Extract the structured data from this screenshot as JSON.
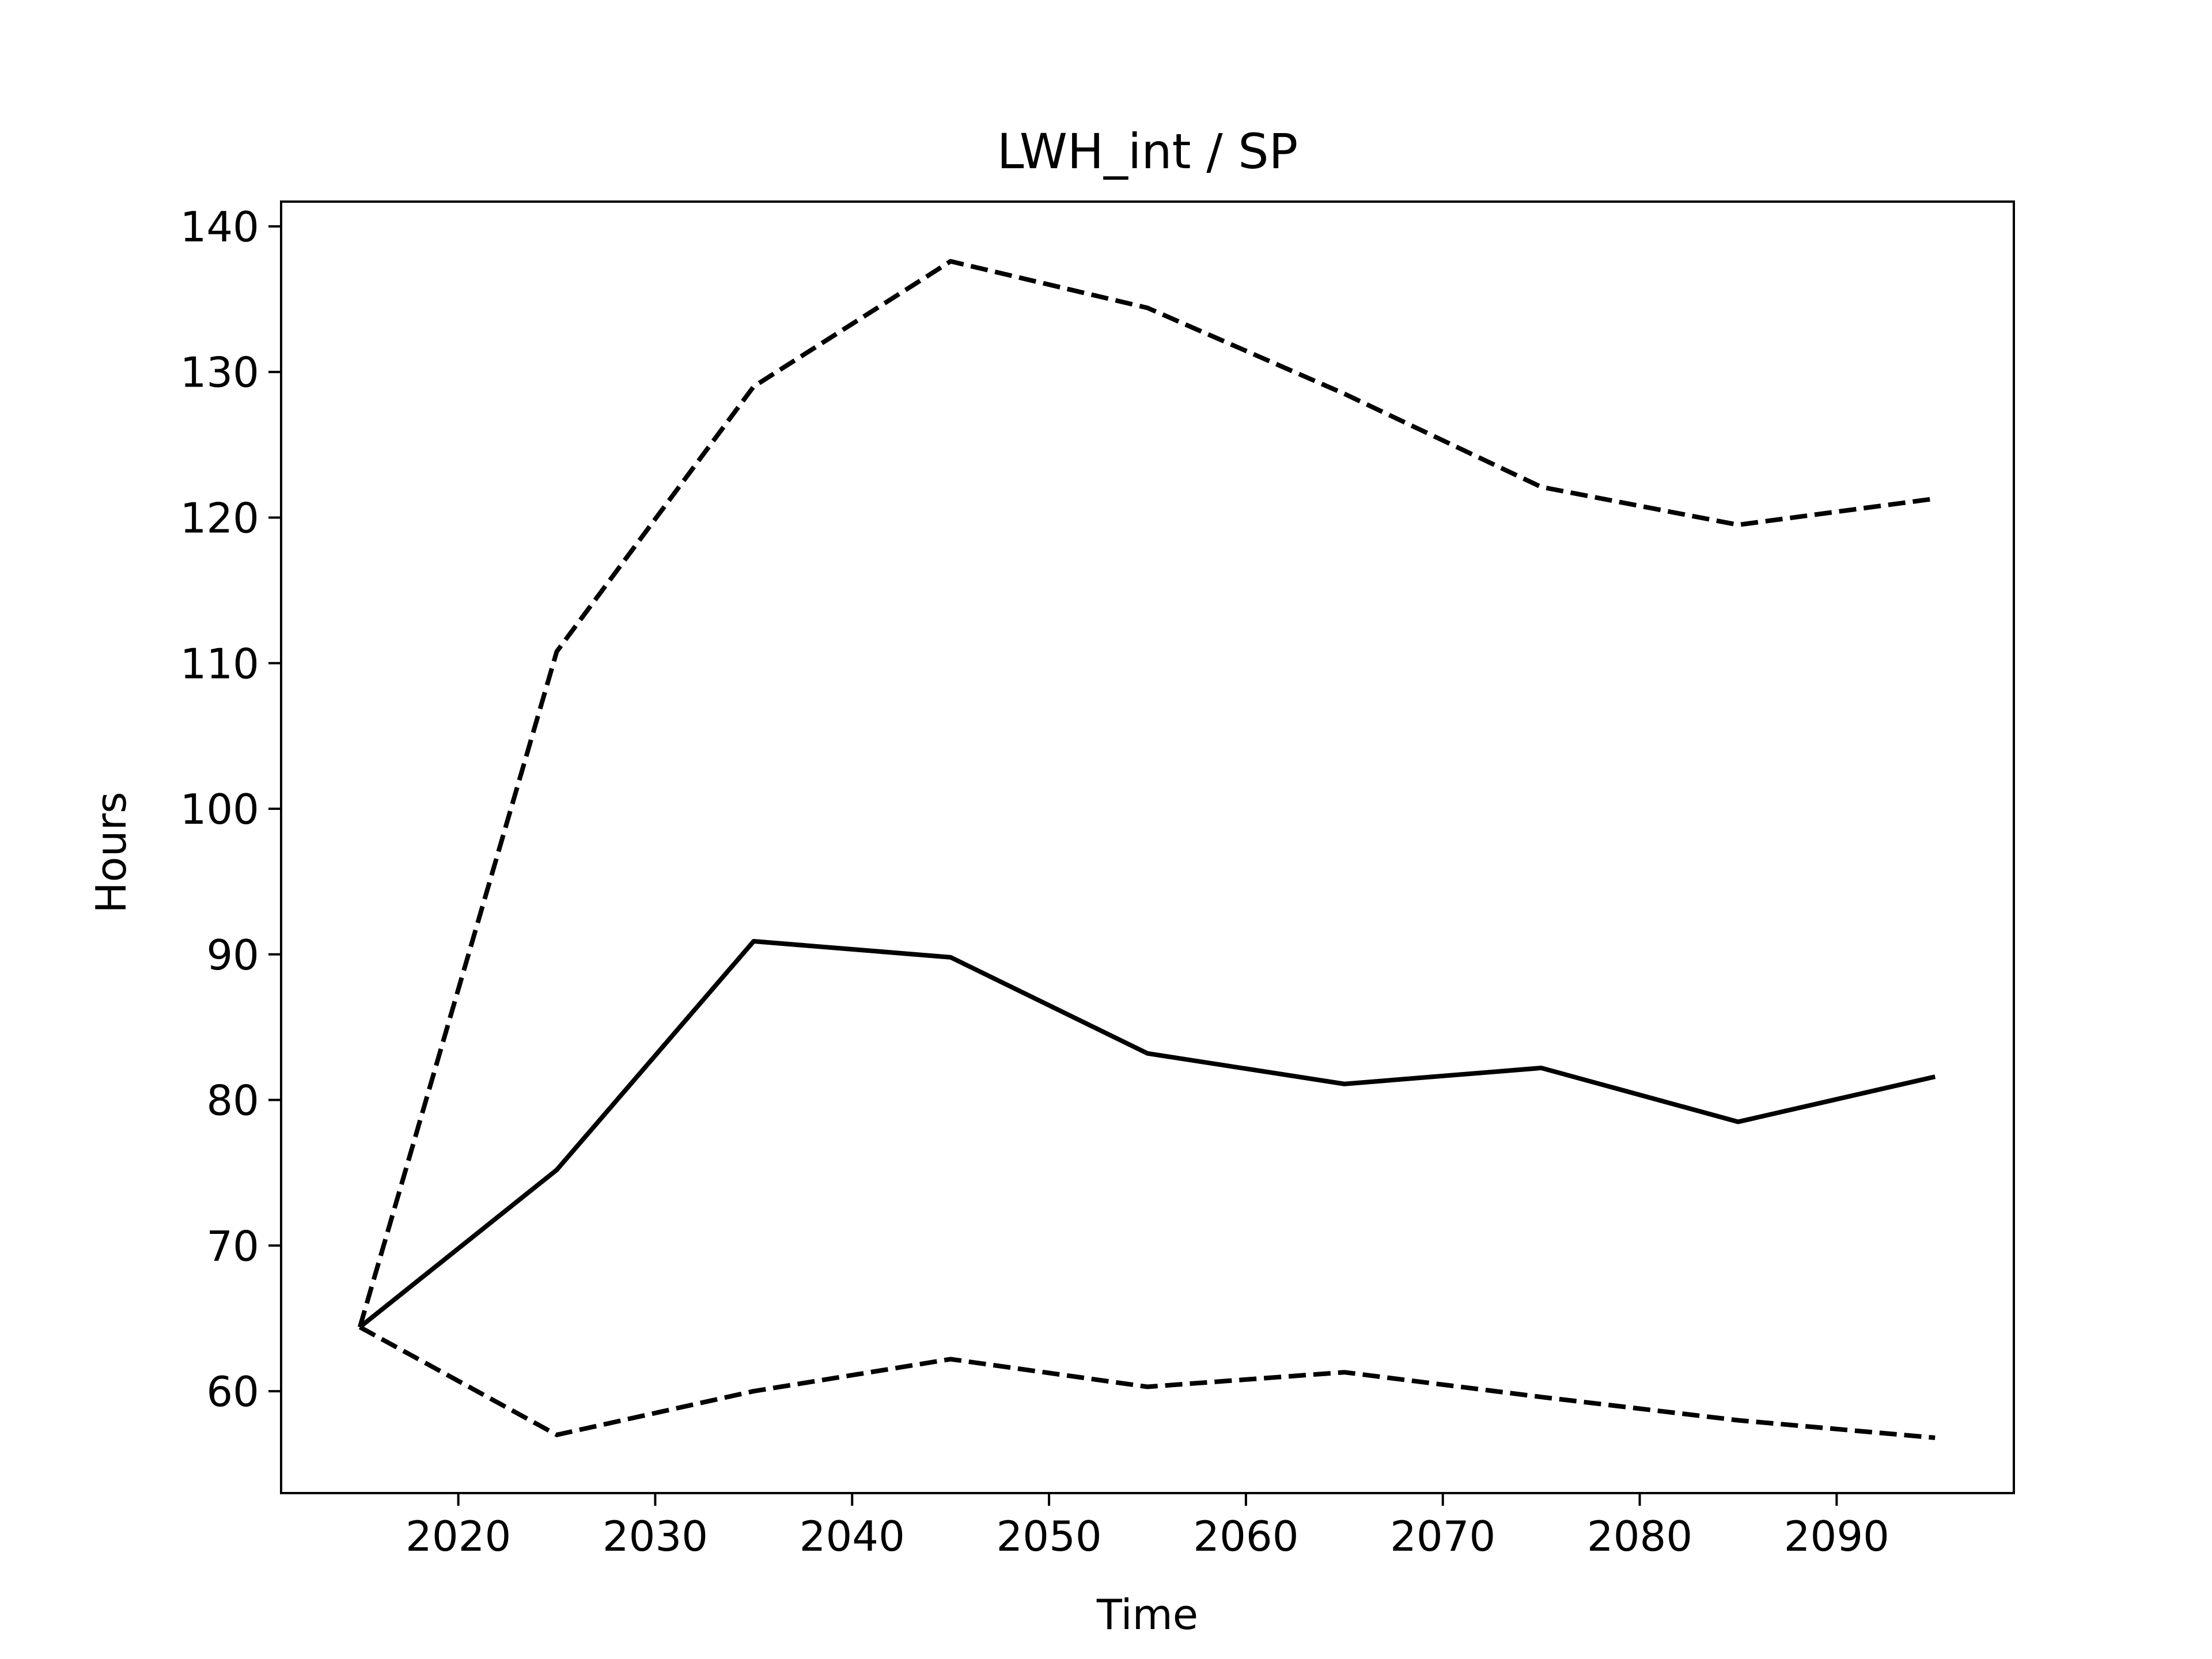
{
  "chart_data": {
    "type": "line",
    "title": "LWH_int / SP",
    "xlabel": "Time",
    "ylabel": "Hours",
    "xlim": [
      2011,
      2099
    ],
    "ylim": [
      53,
      141.7
    ],
    "x_ticks": [
      2020,
      2030,
      2040,
      2050,
      2060,
      2070,
      2080,
      2090
    ],
    "y_ticks": [
      60,
      70,
      80,
      90,
      100,
      110,
      120,
      130,
      140
    ],
    "x_tick_labels": [
      "2020",
      "2030",
      "2040",
      "2050",
      "2060",
      "2070",
      "2080",
      "2090"
    ],
    "y_tick_labels": [
      "60",
      "70",
      "80",
      "90",
      "100",
      "110",
      "120",
      "130",
      "140"
    ],
    "grid": false,
    "legend": "none",
    "x": [
      2015,
      2025,
      2035,
      2045,
      2055,
      2065,
      2075,
      2085,
      2095
    ],
    "series": [
      {
        "values": [
          64.4,
          57.0,
          60.0,
          62.2,
          60.3,
          61.3,
          59.6,
          58.0,
          56.8
        ],
        "style": "dashed",
        "color": "#000000"
      },
      {
        "values": [
          64.4,
          75.2,
          90.9,
          89.8,
          83.2,
          81.1,
          82.2,
          78.5,
          81.6
        ],
        "style": "solid",
        "color": "#000000"
      },
      {
        "values": [
          64.4,
          110.8,
          129.0,
          137.6,
          134.4,
          128.5,
          122.1,
          119.5,
          121.3
        ],
        "style": "dashed",
        "color": "#000000"
      }
    ]
  }
}
